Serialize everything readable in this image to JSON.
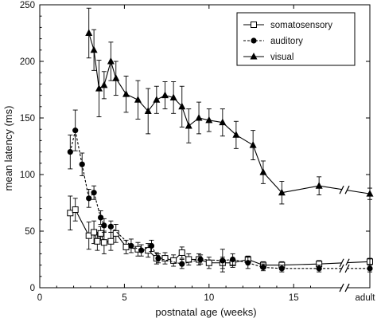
{
  "chart_data": {
    "type": "line",
    "xlabel": "postnatal age (weeks)",
    "ylabel": "mean latency (ms)",
    "xlim": [
      0,
      19.5
    ],
    "ylim": [
      0,
      250
    ],
    "x_ticks": [
      0,
      5,
      10,
      15
    ],
    "x_tick_labels": [
      "0",
      "5",
      "10",
      "15"
    ],
    "x_extra_label": "adult",
    "y_ticks": [
      0,
      50,
      100,
      150,
      200,
      250
    ],
    "y_tick_labels": [
      "0",
      "50",
      "100",
      "150",
      "200",
      "250"
    ],
    "axis_break_between": [
      16.5,
      19.5
    ],
    "legend_position": "top-right",
    "series": [
      {
        "name": "somatosensory",
        "marker": "square-open",
        "line": "solid",
        "points": [
          {
            "x": 1.8,
            "y": 66,
            "err": 15
          },
          {
            "x": 2.1,
            "y": 69,
            "err": 10
          },
          {
            "x": 2.9,
            "y": 46,
            "err": 12
          },
          {
            "x": 3.2,
            "y": 49,
            "err": 10
          },
          {
            "x": 3.4,
            "y": 41,
            "err": 8
          },
          {
            "x": 3.6,
            "y": 48,
            "err": 6
          },
          {
            "x": 3.8,
            "y": 40,
            "err": 10
          },
          {
            "x": 4.2,
            "y": 41,
            "err": 8
          },
          {
            "x": 4.5,
            "y": 48,
            "err": 8
          },
          {
            "x": 5.1,
            "y": 36,
            "err": 6
          },
          {
            "x": 5.8,
            "y": 34,
            "err": 6
          },
          {
            "x": 6.4,
            "y": 33,
            "err": 6
          },
          {
            "x": 6.9,
            "y": 26,
            "err": 5
          },
          {
            "x": 7.4,
            "y": 26,
            "err": 5
          },
          {
            "x": 7.9,
            "y": 24,
            "err": 5
          },
          {
            "x": 8.4,
            "y": 31,
            "err": 5
          },
          {
            "x": 8.8,
            "y": 25,
            "err": 5
          },
          {
            "x": 9.4,
            "y": 25,
            "err": 5
          },
          {
            "x": 10.0,
            "y": 22,
            "err": 5
          },
          {
            "x": 10.8,
            "y": 22,
            "err": 5
          },
          {
            "x": 11.4,
            "y": 22,
            "err": 4
          },
          {
            "x": 12.3,
            "y": 25,
            "err": 3
          },
          {
            "x": 13.2,
            "y": 20,
            "err": 3
          },
          {
            "x": 14.3,
            "y": 20,
            "err": 3
          },
          {
            "x": 16.5,
            "y": 21,
            "err": 3
          },
          {
            "x": 19.5,
            "y": 23,
            "err": 3
          }
        ]
      },
      {
        "name": "auditory",
        "marker": "circle-filled",
        "line": "dashed",
        "points": [
          {
            "x": 1.8,
            "y": 120,
            "err": 15
          },
          {
            "x": 2.1,
            "y": 139,
            "err": 18
          },
          {
            "x": 2.5,
            "y": 109,
            "err": 10
          },
          {
            "x": 2.9,
            "y": 79,
            "err": 8
          },
          {
            "x": 3.2,
            "y": 84,
            "err": 6
          },
          {
            "x": 3.6,
            "y": 62,
            "err": 6
          },
          {
            "x": 3.8,
            "y": 55,
            "err": 6
          },
          {
            "x": 4.2,
            "y": 54,
            "err": 5
          },
          {
            "x": 5.4,
            "y": 37,
            "err": 6
          },
          {
            "x": 6.0,
            "y": 33,
            "err": 5
          },
          {
            "x": 6.6,
            "y": 37,
            "err": 5
          },
          {
            "x": 7.0,
            "y": 26,
            "err": 4
          },
          {
            "x": 8.4,
            "y": 21,
            "err": 4
          },
          {
            "x": 9.5,
            "y": 25,
            "err": 4
          },
          {
            "x": 10.8,
            "y": 24,
            "err": 10
          },
          {
            "x": 11.4,
            "y": 25,
            "err": 5
          },
          {
            "x": 12.3,
            "y": 22,
            "err": 5
          },
          {
            "x": 13.2,
            "y": 18,
            "err": 3
          },
          {
            "x": 14.3,
            "y": 17,
            "err": 3
          },
          {
            "x": 16.5,
            "y": 17,
            "err": 3
          },
          {
            "x": 19.5,
            "y": 17,
            "err": 3
          }
        ]
      },
      {
        "name": "visual",
        "marker": "triangle-filled",
        "line": "solid",
        "points": [
          {
            "x": 2.9,
            "y": 225,
            "err": 22
          },
          {
            "x": 3.2,
            "y": 210,
            "err": 18
          },
          {
            "x": 3.5,
            "y": 176,
            "err": 25
          },
          {
            "x": 3.8,
            "y": 179,
            "err": 12
          },
          {
            "x": 4.2,
            "y": 200,
            "err": 17
          },
          {
            "x": 4.5,
            "y": 185,
            "err": 15
          },
          {
            "x": 5.1,
            "y": 171,
            "err": 16
          },
          {
            "x": 5.8,
            "y": 166,
            "err": 17
          },
          {
            "x": 6.4,
            "y": 156,
            "err": 20
          },
          {
            "x": 6.9,
            "y": 166,
            "err": 12
          },
          {
            "x": 7.4,
            "y": 170,
            "err": 12
          },
          {
            "x": 7.9,
            "y": 168,
            "err": 14
          },
          {
            "x": 8.4,
            "y": 160,
            "err": 18
          },
          {
            "x": 8.8,
            "y": 143,
            "err": 15
          },
          {
            "x": 9.4,
            "y": 150,
            "err": 14
          },
          {
            "x": 10.0,
            "y": 148,
            "err": 10
          },
          {
            "x": 10.8,
            "y": 146,
            "err": 12
          },
          {
            "x": 11.6,
            "y": 135,
            "err": 12
          },
          {
            "x": 12.6,
            "y": 126,
            "err": 13
          },
          {
            "x": 13.2,
            "y": 102,
            "err": 10
          },
          {
            "x": 14.3,
            "y": 84,
            "err": 10
          },
          {
            "x": 16.5,
            "y": 90,
            "err": 8
          },
          {
            "x": 19.5,
            "y": 83,
            "err": 5
          }
        ]
      }
    ]
  }
}
